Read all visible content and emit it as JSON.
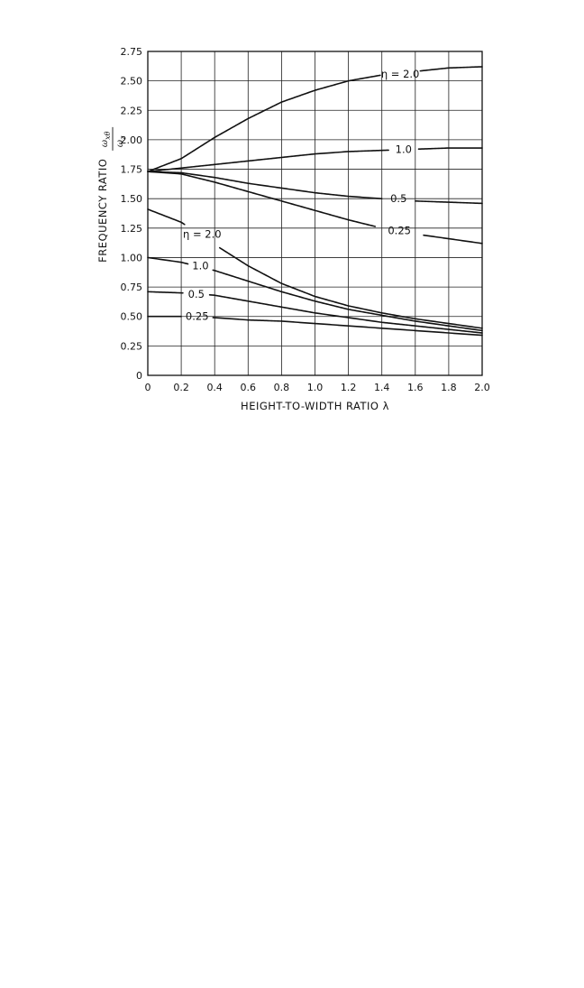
{
  "chart_data": {
    "type": "line",
    "xlabel": "HEIGHT-TO-WIDTH RATIO λ",
    "ylabel": "FREQUENCY RATIO",
    "ylabel_fraction": {
      "numerator": "ω",
      "numerator_sub": "xθ",
      "denominator": "ω",
      "denominator_sub": "z"
    },
    "xlim": [
      0,
      2.0
    ],
    "ylim": [
      0,
      2.75
    ],
    "x_ticks": [
      "0",
      "0.2",
      "0.4",
      "0.6",
      "0.8",
      "1.0",
      "1.2",
      "1.4",
      "1.6",
      "1.8",
      "2.0"
    ],
    "y_ticks": [
      "0",
      "0.25",
      "0.50",
      "0.75",
      "1.00",
      "1.25",
      "1.50",
      "1.75",
      "2.00",
      "2.25",
      "2.50",
      "2.75"
    ],
    "grid": true,
    "series": [
      {
        "name": "η = 2.0",
        "group": "upper",
        "x": [
          0,
          0.2,
          0.4,
          0.6,
          0.8,
          1.0,
          1.2,
          1.4,
          1.6,
          1.8,
          2.0
        ],
        "y": [
          1.73,
          1.84,
          2.02,
          2.18,
          2.32,
          2.42,
          2.5,
          2.55,
          2.58,
          2.61,
          2.62
        ]
      },
      {
        "name": "1.0",
        "group": "upper",
        "x": [
          0,
          0.2,
          0.4,
          0.6,
          0.8,
          1.0,
          1.2,
          1.4,
          1.6,
          1.8,
          2.0
        ],
        "y": [
          1.73,
          1.76,
          1.79,
          1.82,
          1.85,
          1.88,
          1.9,
          1.91,
          1.92,
          1.93,
          1.93
        ]
      },
      {
        "name": "0.5",
        "group": "upper",
        "x": [
          0,
          0.2,
          0.4,
          0.6,
          0.8,
          1.0,
          1.2,
          1.4,
          1.6,
          1.8,
          2.0
        ],
        "y": [
          1.73,
          1.72,
          1.68,
          1.63,
          1.59,
          1.55,
          1.52,
          1.5,
          1.48,
          1.47,
          1.46
        ]
      },
      {
        "name": "0.25",
        "group": "upper",
        "x": [
          0,
          0.2,
          0.4,
          0.6,
          0.8,
          1.0,
          1.2,
          1.4,
          1.6,
          1.8,
          2.0
        ],
        "y": [
          1.73,
          1.71,
          1.64,
          1.56,
          1.48,
          1.4,
          1.32,
          1.25,
          1.2,
          1.16,
          1.12
        ]
      },
      {
        "name": "η = 2.0",
        "group": "lower",
        "x": [
          0,
          0.2,
          0.4,
          0.6,
          0.8,
          1.0,
          1.2,
          1.4,
          1.6,
          1.8,
          2.0
        ],
        "y": [
          1.41,
          1.3,
          1.11,
          0.93,
          0.78,
          0.67,
          0.59,
          0.53,
          0.48,
          0.44,
          0.4
        ]
      },
      {
        "name": "1.0",
        "group": "lower",
        "x": [
          0,
          0.2,
          0.4,
          0.6,
          0.8,
          1.0,
          1.2,
          1.4,
          1.6,
          1.8,
          2.0
        ],
        "y": [
          1.0,
          0.96,
          0.89,
          0.8,
          0.71,
          0.63,
          0.56,
          0.51,
          0.46,
          0.42,
          0.38
        ]
      },
      {
        "name": "0.5",
        "group": "lower",
        "x": [
          0,
          0.2,
          0.4,
          0.6,
          0.8,
          1.0,
          1.2,
          1.4,
          1.6,
          1.8,
          2.0
        ],
        "y": [
          0.71,
          0.7,
          0.68,
          0.63,
          0.58,
          0.53,
          0.49,
          0.45,
          0.42,
          0.39,
          0.36
        ]
      },
      {
        "name": "0.25",
        "group": "lower",
        "x": [
          0,
          0.2,
          0.4,
          0.6,
          0.8,
          1.0,
          1.2,
          1.4,
          1.6,
          1.8,
          2.0
        ],
        "y": [
          0.5,
          0.5,
          0.49,
          0.47,
          0.46,
          0.44,
          0.42,
          0.4,
          0.38,
          0.36,
          0.34
        ]
      }
    ],
    "curve_labels": [
      {
        "text": "η = 2.0",
        "at_x": 1.49,
        "at_y": 2.56,
        "gap": [
          1.39,
          1.63
        ]
      },
      {
        "text": "1.0",
        "at_x": 1.53,
        "at_y": 1.92,
        "gap": [
          1.44,
          1.62
        ]
      },
      {
        "text": "0.5",
        "at_x": 1.5,
        "at_y": 1.5,
        "gap": [
          1.4,
          1.6
        ]
      },
      {
        "text": "0.25",
        "at_x": 1.5,
        "at_y": 1.23,
        "gap": [
          1.36,
          1.65
        ]
      },
      {
        "text": "η = 2.0",
        "at_x": 0.3,
        "at_y": 1.2,
        "gap": [
          0.22,
          0.43
        ]
      },
      {
        "text": "1.0",
        "at_x": 0.31,
        "at_y": 0.93,
        "gap": [
          0.24,
          0.39
        ]
      },
      {
        "text": "0.5",
        "at_x": 0.29,
        "at_y": 0.69,
        "gap": [
          0.21,
          0.37
        ]
      },
      {
        "text": "0.25",
        "at_x": 0.29,
        "at_y": 0.5,
        "gap": [
          0.2,
          0.39
        ]
      }
    ]
  }
}
